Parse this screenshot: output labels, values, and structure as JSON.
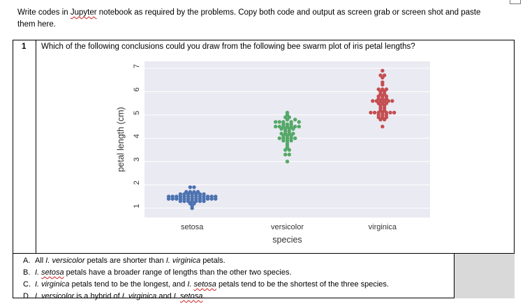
{
  "intro": {
    "line1_pre": "Write codes in ",
    "line1_link": "Jupyter",
    "line1_post": " notebook as required by the problems. Copy both code and output as screen grab or screen shot and paste",
    "line2": "them here."
  },
  "question": {
    "number": "1",
    "text": "Which of the following conclusions could you draw from the following bee swarm plot of iris petal lengths?"
  },
  "options": [
    {
      "letter": "A.",
      "parts": [
        {
          "t": "All "
        },
        {
          "t": "I. versicolor",
          "i": true
        },
        {
          "t": " petals are shorter than "
        },
        {
          "t": "I. virginica",
          "i": true
        },
        {
          "t": " petals."
        }
      ]
    },
    {
      "letter": "B.",
      "parts": [
        {
          "t": "I. ",
          "i": true
        },
        {
          "t": "setosa",
          "i": true,
          "s": true
        },
        {
          "t": " petals have a broader range of lengths than the other two species."
        }
      ]
    },
    {
      "letter": "C.",
      "parts": [
        {
          "t": "I. virginica",
          "i": true
        },
        {
          "t": " petals tend to be the longest, and "
        },
        {
          "t": "I. ",
          "i": true
        },
        {
          "t": "setosa",
          "i": true,
          "s": true
        },
        {
          "t": " petals tend to be the shortest of the three species."
        }
      ]
    },
    {
      "letter": "D.",
      "parts": [
        {
          "t": "I. versicolor",
          "i": true
        },
        {
          "t": " is a hybrid of "
        },
        {
          "t": "I. virginica",
          "i": true
        },
        {
          "t": " and "
        },
        {
          "t": "I. ",
          "i": true
        },
        {
          "t": "setosa",
          "i": true,
          "s": true
        },
        {
          "t": "."
        }
      ]
    }
  ],
  "chart_data": {
    "type": "scatter",
    "style": "seaborn beeswarm",
    "xlabel": "species",
    "ylabel": "petal length (cm)",
    "ylim": [
      0.6,
      7.3
    ],
    "yticks": [
      1,
      2,
      3,
      4,
      5,
      6,
      7
    ],
    "grid": true,
    "background": "#eaeaf2",
    "categories": [
      "setosa",
      "versicolor",
      "virginica"
    ],
    "series": [
      {
        "color": "#4c72b0",
        "values": [
          1.4,
          1.4,
          1.3,
          1.5,
          1.4,
          1.7,
          1.4,
          1.5,
          1.4,
          1.5,
          1.5,
          1.6,
          1.4,
          1.1,
          1.2,
          1.5,
          1.3,
          1.4,
          1.7,
          1.5,
          1.7,
          1.5,
          1.0,
          1.7,
          1.9,
          1.6,
          1.6,
          1.5,
          1.4,
          1.6,
          1.6,
          1.5,
          1.5,
          1.4,
          1.5,
          1.2,
          1.3,
          1.4,
          1.3,
          1.5,
          1.3,
          1.3,
          1.3,
          1.6,
          1.9,
          1.4,
          1.6,
          1.4,
          1.5,
          1.4
        ]
      },
      {
        "color": "#55a868",
        "values": [
          4.7,
          4.5,
          4.9,
          4.0,
          4.6,
          4.5,
          4.7,
          3.3,
          4.6,
          3.9,
          3.5,
          4.2,
          4.0,
          4.7,
          3.6,
          4.4,
          4.5,
          4.1,
          4.5,
          3.9,
          4.8,
          4.0,
          4.9,
          4.7,
          4.3,
          4.4,
          4.8,
          5.0,
          4.5,
          3.5,
          3.8,
          3.7,
          3.9,
          5.1,
          4.5,
          4.5,
          4.7,
          4.4,
          4.1,
          4.0,
          4.4,
          4.6,
          4.0,
          3.3,
          4.2,
          4.2,
          4.2,
          4.3,
          3.0,
          4.1
        ]
      },
      {
        "color": "#c44e52",
        "values": [
          6.0,
          5.1,
          5.9,
          5.6,
          5.8,
          6.6,
          4.5,
          6.3,
          5.8,
          6.1,
          5.1,
          5.3,
          5.5,
          5.0,
          5.1,
          5.3,
          5.5,
          6.7,
          6.9,
          5.0,
          5.7,
          4.9,
          6.7,
          4.9,
          5.7,
          6.0,
          4.8,
          4.9,
          5.6,
          5.8,
          6.1,
          6.4,
          5.6,
          5.1,
          5.6,
          6.1,
          5.6,
          5.5,
          4.8,
          5.4,
          5.6,
          5.1,
          5.1,
          5.9,
          5.7,
          5.2,
          5.0,
          5.2,
          5.4,
          5.1
        ]
      }
    ]
  }
}
